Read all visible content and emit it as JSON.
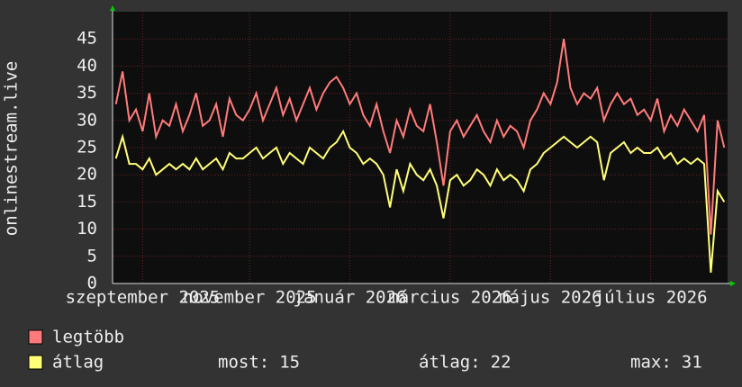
{
  "chart_data": {
    "type": "line",
    "y_label": "onlinestream.live",
    "categories": [
      null,
      null,
      null,
      null,
      "szeptember 2025",
      null,
      null,
      null,
      null,
      null,
      null,
      null,
      null,
      null,
      null,
      null,
      null,
      null,
      null,
      null,
      "november 2025",
      null,
      null,
      null,
      null,
      null,
      null,
      null,
      null,
      null,
      null,
      null,
      null,
      null,
      null,
      "január 2026",
      null,
      null,
      null,
      null,
      null,
      null,
      null,
      null,
      null,
      null,
      null,
      null,
      null,
      null,
      "március 2026",
      null,
      null,
      null,
      null,
      null,
      null,
      null,
      null,
      null,
      null,
      null,
      null,
      null,
      null,
      "május 2026",
      null,
      null,
      null,
      null,
      null,
      null,
      null,
      null,
      null,
      null,
      null,
      null,
      null,
      null,
      "július 2026",
      null,
      null,
      null,
      null,
      null,
      null,
      null,
      null,
      null,
      null,
      null
    ],
    "series": [
      {
        "name": "legtöbb",
        "color": "#ff7b7b",
        "values": [
          33,
          39,
          30,
          32,
          28,
          35,
          27,
          30,
          29,
          33,
          28,
          31,
          35,
          29,
          30,
          33,
          27,
          34,
          31,
          30,
          32,
          35,
          30,
          33,
          36,
          31,
          34,
          30,
          33,
          36,
          32,
          35,
          37,
          38,
          36,
          33,
          35,
          31,
          29,
          33,
          28,
          24,
          30,
          27,
          32,
          29,
          28,
          33,
          26,
          18,
          28,
          30,
          27,
          29,
          31,
          28,
          26,
          30,
          27,
          29,
          28,
          25,
          30,
          32,
          35,
          33,
          37,
          45,
          36,
          33,
          35,
          34,
          36,
          30,
          33,
          35,
          33,
          34,
          31,
          32,
          30,
          34,
          28,
          31,
          29,
          32,
          30,
          28,
          31,
          9,
          30,
          25
        ]
      },
      {
        "name": "átlag",
        "color": "#ffff77",
        "values": [
          23,
          27,
          22,
          22,
          21,
          23,
          20,
          21,
          22,
          21,
          22,
          21,
          23,
          21,
          22,
          23,
          21,
          24,
          23,
          23,
          24,
          25,
          23,
          24,
          25,
          22,
          24,
          23,
          22,
          25,
          24,
          23,
          25,
          26,
          28,
          25,
          24,
          22,
          23,
          22,
          20,
          14,
          21,
          17,
          22,
          20,
          19,
          21,
          18,
          12,
          19,
          20,
          18,
          19,
          21,
          20,
          18,
          21,
          19,
          20,
          19,
          17,
          21,
          22,
          24,
          25,
          26,
          27,
          26,
          25,
          26,
          27,
          26,
          19,
          24,
          25,
          26,
          24,
          25,
          24,
          24,
          25,
          23,
          24,
          22,
          23,
          22,
          23,
          22,
          2,
          17,
          15
        ]
      }
    ],
    "ylim": [
      0,
      50
    ],
    "yticks": [
      0,
      5,
      10,
      15,
      20,
      25,
      30,
      35,
      40,
      45
    ],
    "grid": true,
    "stats": [
      {
        "label": "most:",
        "value": 15
      },
      {
        "label": "átlag:",
        "value": 22
      },
      {
        "label": "max:",
        "value": 31
      }
    ]
  }
}
